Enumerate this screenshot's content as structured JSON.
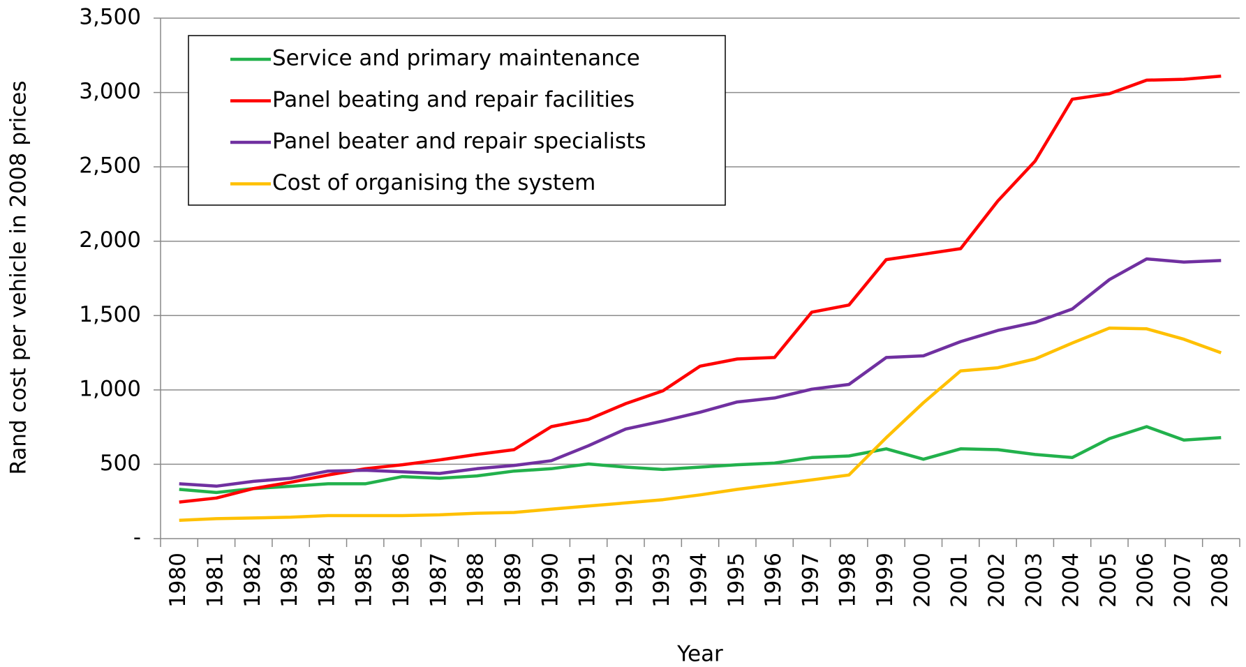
{
  "chart_data": {
    "type": "line",
    "xlabel": "Year",
    "ylabel": "Rand cost per vehicle in 2008 prices",
    "categories": [
      "1980",
      "1981",
      "1982",
      "1983",
      "1984",
      "1985",
      "1986",
      "1987",
      "1988",
      "1989",
      "1990",
      "1991",
      "1992",
      "1993",
      "1994",
      "1995",
      "1996",
      "1997",
      "1998",
      "1999",
      "2000",
      "2001",
      "2002",
      "2003",
      "2004",
      "2005",
      "2006",
      "2007",
      "2008"
    ],
    "series": [
      {
        "name": "Service and primary maintenance",
        "color": "#22b14c",
        "values": [
          331,
          310,
          337,
          352,
          369,
          369,
          417,
          406,
          422,
          454,
          470,
          502,
          481,
          465,
          481,
          497,
          508,
          545,
          556,
          604,
          534,
          604,
          598,
          566,
          545,
          673,
          753,
          663,
          679
        ]
      },
      {
        "name": "Panel beating and repair facilities",
        "color": "#ff0000",
        "values": [
          246,
          273,
          337,
          379,
          428,
          470,
          497,
          529,
          566,
          598,
          753,
          802,
          908,
          994,
          1160,
          1208,
          1218,
          1523,
          1571,
          1876,
          1913,
          1950,
          2271,
          2538,
          2955,
          2992,
          3083,
          3089,
          3110
        ]
      },
      {
        "name": "Panel beater and repair specialists",
        "color": "#7030a0",
        "values": [
          369,
          353,
          385,
          406,
          454,
          460,
          449,
          438,
          470,
          492,
          524,
          625,
          737,
          791,
          850,
          919,
          946,
          1005,
          1037,
          1218,
          1229,
          1325,
          1400,
          1454,
          1544,
          1742,
          1881,
          1860,
          1870
        ]
      },
      {
        "name": "Cost of organising the system",
        "color": "#ffc000",
        "values": [
          123,
          134,
          139,
          144,
          155,
          155,
          155,
          160,
          171,
          176,
          198,
          219,
          240,
          262,
          294,
          331,
          363,
          395,
          428,
          679,
          914,
          1128,
          1149,
          1208,
          1315,
          1416,
          1411,
          1341,
          1250
        ]
      }
    ],
    "ylim": [
      0,
      3500
    ],
    "yticks": [
      {
        "value": 0,
        "label": "-"
      },
      500,
      {
        "value": 1000,
        "label": "1,000"
      },
      {
        "value": 1500,
        "label": "1,500"
      },
      {
        "value": 2000,
        "label": "2,000"
      },
      {
        "value": 2500,
        "label": "2,500"
      },
      {
        "value": 3000,
        "label": "3,000"
      },
      {
        "value": 3500,
        "label": "3,500"
      }
    ],
    "grid": true,
    "legend": "upper left"
  }
}
